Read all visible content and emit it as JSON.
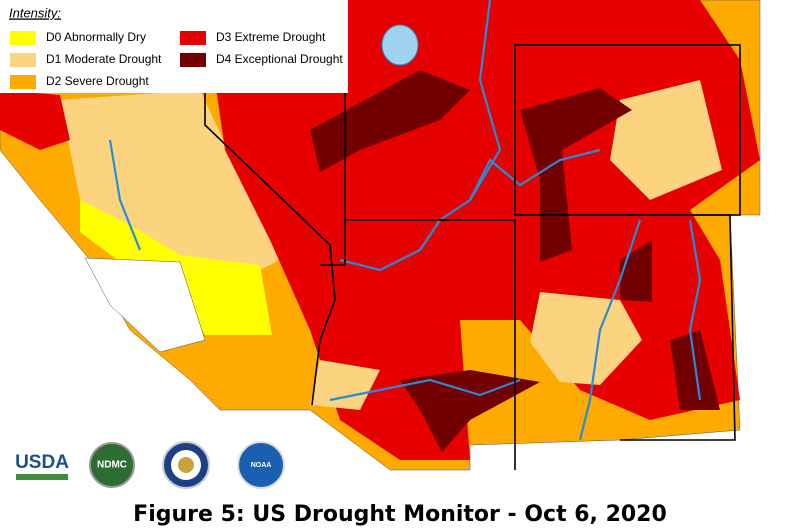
{
  "legend": {
    "title": "Intensity:",
    "items": [
      {
        "label": "D0 Abnormally Dry",
        "color": "#ffff00"
      },
      {
        "label": "D1 Moderate Drought",
        "color": "#fcd37f"
      },
      {
        "label": "D2 Severe Drought",
        "color": "#ffaa00"
      },
      {
        "label": "D3 Extreme Drought",
        "color": "#e60000"
      },
      {
        "label": "D4 Exceptional Drought",
        "color": "#730000"
      }
    ]
  },
  "logos": [
    "USDA",
    "NDMC",
    "NOAA"
  ],
  "caption": "Figure 5: US Drought Monitor - Oct 6, 2020"
}
